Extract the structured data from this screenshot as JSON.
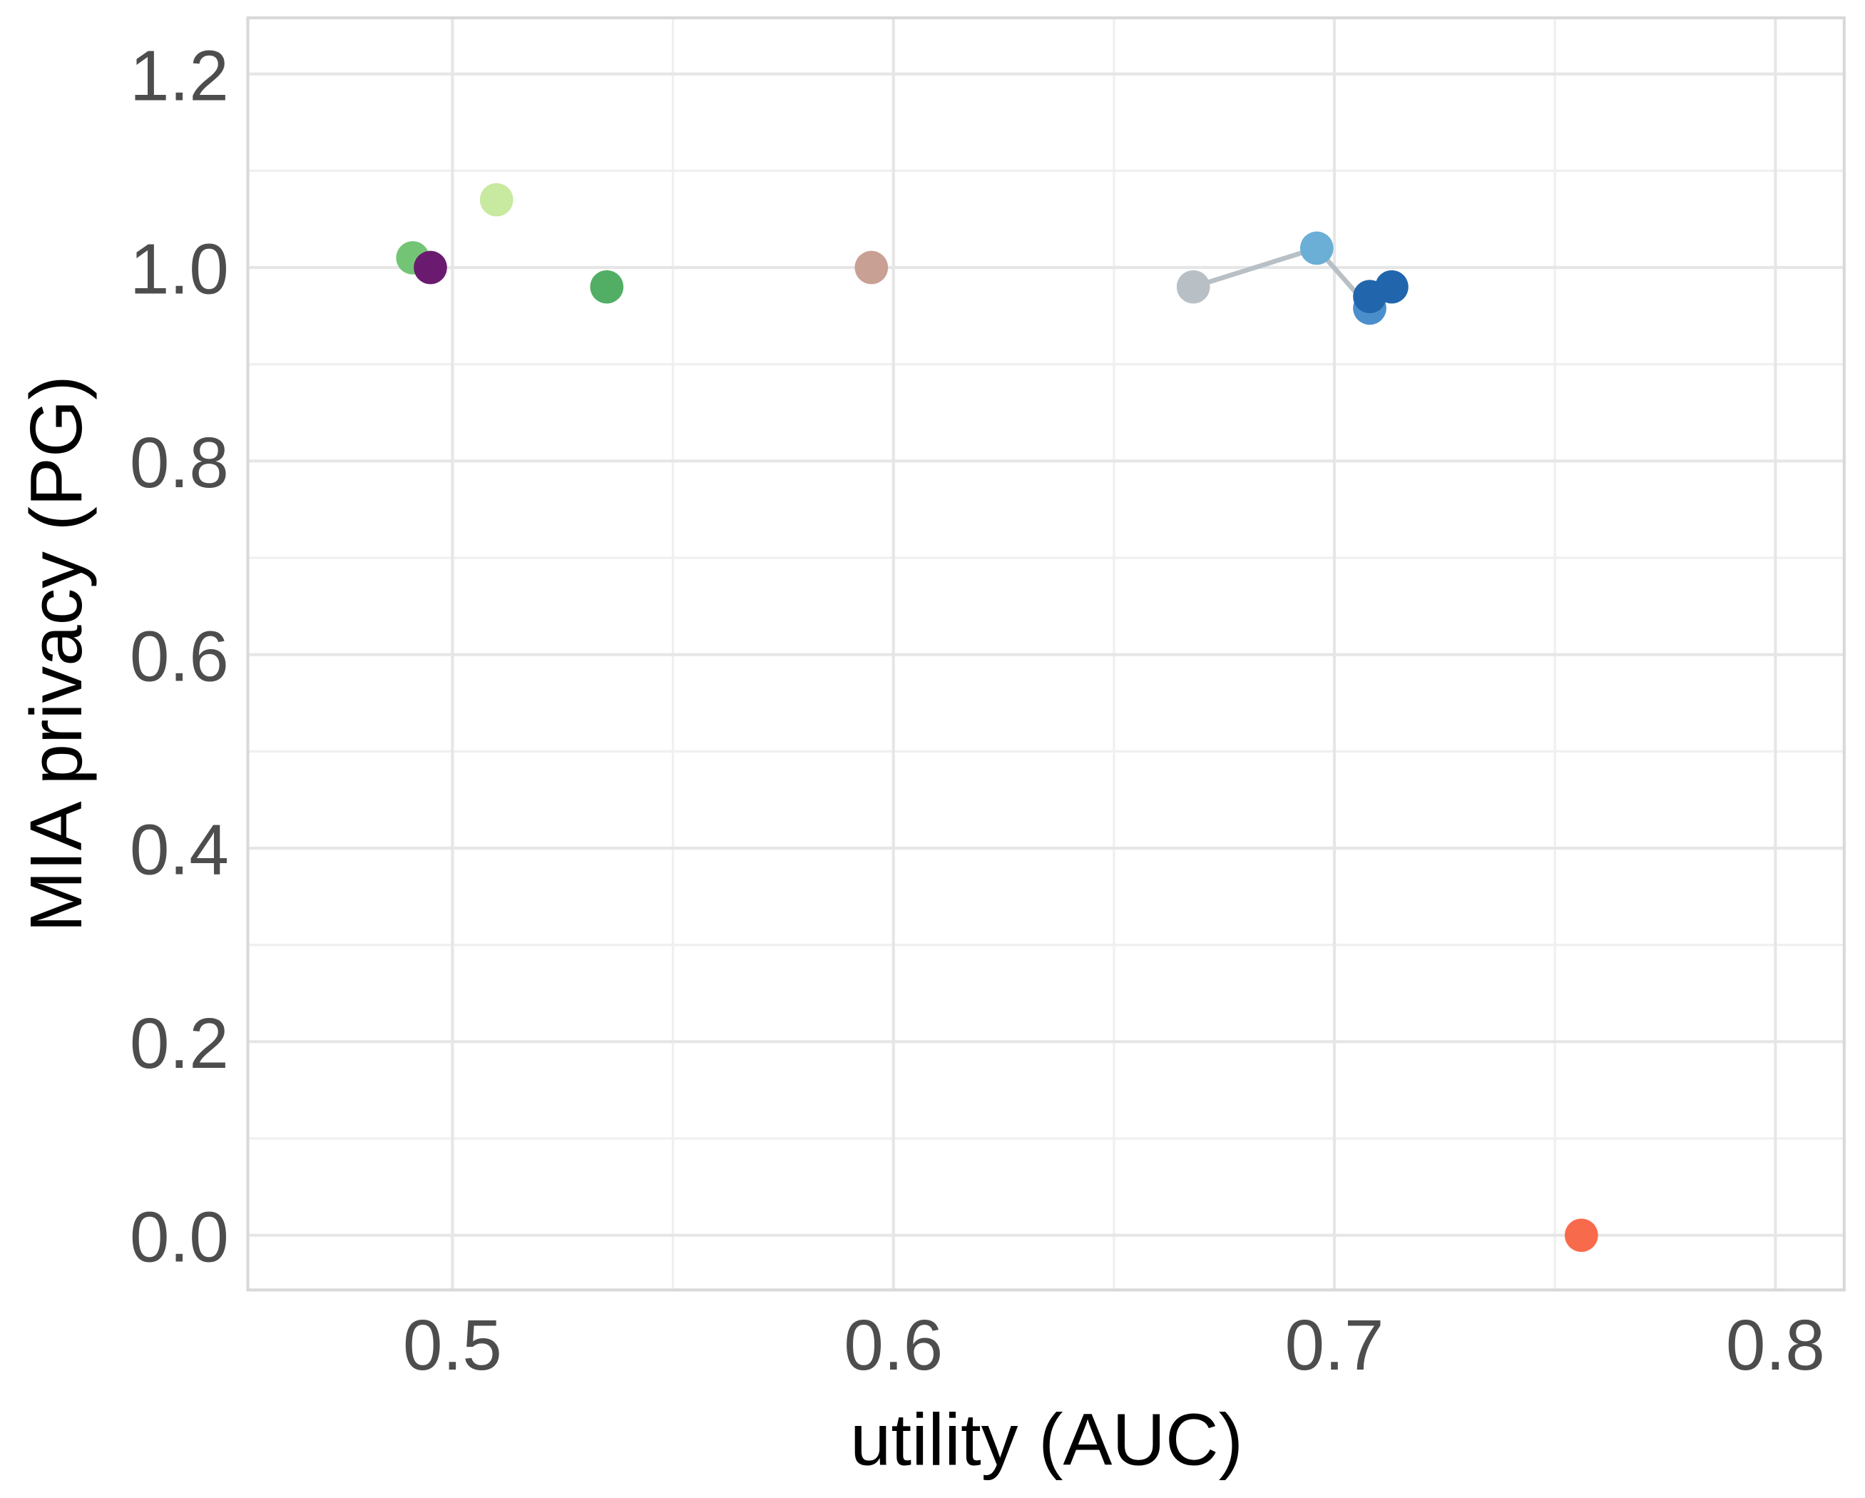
{
  "chart_data": {
    "type": "scatter",
    "xlabel": "utility (AUC)",
    "ylabel": "MIA privacy (PG)",
    "xlim": [
      0.4536,
      0.8156
    ],
    "ylim": [
      -0.0565,
      1.258
    ],
    "xticks": [
      0.5,
      0.6,
      0.7,
      0.8
    ],
    "yticks": [
      {
        "value": 0,
        "label": "0.0"
      },
      0.2,
      0.4,
      0.6,
      0.8,
      {
        "value": 1,
        "label": "1.0"
      },
      1.2
    ],
    "grid": true,
    "series": [
      {
        "x": [
          0.491
        ],
        "values": [
          1.01
        ],
        "color": "#74c476"
      },
      {
        "x": [
          0.495
        ],
        "values": [
          1.0
        ],
        "color": "#6a1b70"
      },
      {
        "x": [
          0.51
        ],
        "values": [
          1.07
        ],
        "color": "#c7e9a0"
      },
      {
        "x": [
          0.535
        ],
        "values": [
          0.98
        ],
        "color": "#52ae64"
      },
      {
        "x": [
          0.595
        ],
        "values": [
          1.0
        ],
        "color": "#c9a094"
      },
      {
        "x": [
          0.668,
          0.696,
          0.708,
          0.708,
          0.713
        ],
        "values": [
          0.98,
          1.02,
          0.958,
          0.97,
          0.98
        ],
        "color": "#b8c0c6",
        "line": true,
        "colors": [
          "#b8c0c6",
          "#6baed6",
          "#4a8fcc",
          "#2166ac",
          "#2166ac"
        ]
      },
      {
        "x": [
          0.756
        ],
        "values": [
          0.0
        ],
        "color": "#f86a4c"
      }
    ]
  }
}
